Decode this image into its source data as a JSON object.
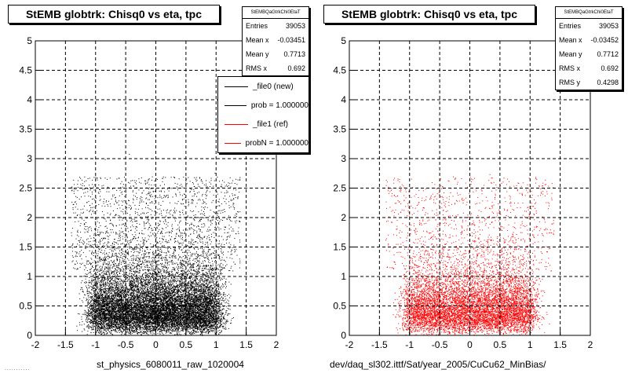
{
  "panels": [
    {
      "title": "StEMB globtrk: Chisq0 vs eta, tpc",
      "stats": {
        "name": "StEMBQaGtrkChi0EtaT",
        "rows": [
          {
            "label": "Entries",
            "value": "39053"
          },
          {
            "label": "Mean x",
            "value": "-0.03451"
          },
          {
            "label": "Mean y",
            "value": "0.7713"
          },
          {
            "label": "RMS x",
            "value": "0.692"
          }
        ]
      },
      "legend": [
        {
          "label": "_file0 (new)",
          "color": "#000000"
        },
        {
          "label": "prob = 1.000000",
          "color": "#000000"
        },
        {
          "label": "_file1 (ref)",
          "color": "#ff0000"
        },
        {
          "label": "probN = 1.000000",
          "color": "#ff0000"
        }
      ],
      "xtitle": "st_physics_6080011_raw_1020004"
    },
    {
      "title": "StEMB globtrk: Chisq0 vs eta, tpc",
      "stats": {
        "name": "StEMBQaGtrkChi0EtaT",
        "rows": [
          {
            "label": "Entries",
            "value": "39053"
          },
          {
            "label": "Mean x",
            "value": "-0.03452"
          },
          {
            "label": "Mean y",
            "value": "0.7712"
          },
          {
            "label": "RMS x",
            "value": "0.692"
          },
          {
            "label": "RMS y",
            "value": "0.4298"
          }
        ]
      },
      "xtitle": "dev/daq_sl302.ittf/Sat/year_2005/CuCu62_MinBias/"
    }
  ],
  "footer": "...........",
  "chart_data": [
    {
      "type": "scatter",
      "title": "StEMB globtrk: Chisq0 vs eta, tpc",
      "xlabel": "st_physics_6080011_raw_1020004",
      "ylabel": "",
      "xlim": [
        -2,
        2
      ],
      "ylim": [
        0,
        5
      ],
      "xticks": [
        -2,
        -1.5,
        -1,
        -0.5,
        0,
        0.5,
        1,
        1.5,
        2
      ],
      "yticks": [
        0,
        0.5,
        1,
        1.5,
        2,
        2.5,
        3,
        3.5,
        4,
        4.5,
        5
      ],
      "grid": true,
      "color": "#000000",
      "entries": 39053,
      "mean_x": -0.03451,
      "mean_y": 0.7713,
      "rms_x": 0.692,
      "rms_y": 0.4298
    },
    {
      "type": "scatter",
      "title": "StEMB globtrk: Chisq0 vs eta, tpc",
      "xlabel": "dev/daq_sl302.ittf/Sat/year_2005/CuCu62_MinBias/",
      "ylabel": "",
      "xlim": [
        -2,
        2
      ],
      "ylim": [
        0,
        5
      ],
      "xticks": [
        -2,
        -1.5,
        -1,
        -0.5,
        0,
        0.5,
        1,
        1.5,
        2
      ],
      "yticks": [
        0,
        0.5,
        1,
        1.5,
        2,
        2.5,
        3,
        3.5,
        4,
        4.5,
        5
      ],
      "grid": true,
      "color": "#ff0000",
      "entries": 39053,
      "mean_x": -0.03452,
      "mean_y": 0.7712,
      "rms_x": 0.692,
      "rms_y": 0.4298
    }
  ]
}
